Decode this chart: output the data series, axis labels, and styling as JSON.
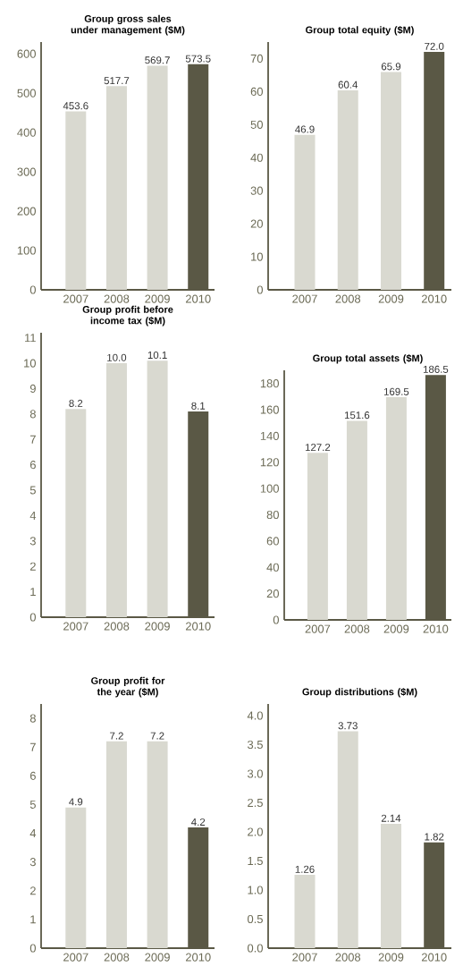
{
  "chart_data": [
    {
      "type": "bar",
      "title": "Group gross sales under management ($M)",
      "categories": [
        "2007",
        "2008",
        "2009",
        "2010"
      ],
      "values": [
        453.6,
        517.7,
        569.7,
        573.5
      ],
      "value_labels": [
        "453.6",
        "517.7",
        "569.7",
        "573.5"
      ],
      "colors": [
        "#d9d9d0",
        "#d9d9d0",
        "#d9d9d0",
        "#5a5845"
      ],
      "ylim": [
        0,
        630
      ],
      "yticks": [
        0,
        100,
        200,
        300,
        400,
        500,
        600
      ]
    },
    {
      "type": "bar",
      "title": "Group total equity ($M)",
      "categories": [
        "2007",
        "2008",
        "2009",
        "2010"
      ],
      "values": [
        46.9,
        60.4,
        65.9,
        72.0
      ],
      "value_labels": [
        "46.9",
        "60.4",
        "65.9",
        "72.0"
      ],
      "colors": [
        "#d9d9d0",
        "#d9d9d0",
        "#d9d9d0",
        "#5a5845"
      ],
      "ylim": [
        0,
        75
      ],
      "yticks": [
        0,
        10,
        20,
        30,
        40,
        50,
        60,
        70
      ]
    },
    {
      "type": "bar",
      "title": "Group profit before income tax ($M)",
      "categories": [
        "2007",
        "2008",
        "2009",
        "2010"
      ],
      "values": [
        8.2,
        10.0,
        10.1,
        8.1
      ],
      "value_labels": [
        "8.2",
        "10.0",
        "10.1",
        "8.1"
      ],
      "colors": [
        "#d9d9d0",
        "#d9d9d0",
        "#d9d9d0",
        "#5a5845"
      ],
      "ylim": [
        0,
        11.2
      ],
      "yticks": [
        0,
        1,
        2,
        3,
        4,
        5,
        6,
        7,
        8,
        9,
        10,
        11
      ]
    },
    {
      "type": "bar",
      "title": "Group total assets ($M)",
      "categories": [
        "2007",
        "2008",
        "2009",
        "2010"
      ],
      "values": [
        127.2,
        151.6,
        169.5,
        186.5
      ],
      "value_labels": [
        "127.2",
        "151.6",
        "169.5",
        "186.5"
      ],
      "colors": [
        "#d9d9d0",
        "#d9d9d0",
        "#d9d9d0",
        "#5a5845"
      ],
      "ylim": [
        0,
        190
      ],
      "yticks": [
        0,
        20,
        40,
        60,
        80,
        100,
        120,
        140,
        160,
        180
      ]
    },
    {
      "type": "bar",
      "title": "Group profit for the year ($M)",
      "categories": [
        "2007",
        "2008",
        "2009",
        "2010"
      ],
      "values": [
        4.9,
        7.2,
        7.2,
        4.2
      ],
      "value_labels": [
        "4.9",
        "7.2",
        "7.2",
        "4.2"
      ],
      "colors": [
        "#d9d9d0",
        "#d9d9d0",
        "#d9d9d0",
        "#5a5845"
      ],
      "ylim": [
        0,
        8.5
      ],
      "yticks": [
        0,
        1,
        2,
        3,
        4,
        5,
        6,
        7,
        8
      ]
    },
    {
      "type": "bar",
      "title": "Group distributions ($M)",
      "categories": [
        "2007",
        "2008",
        "2009",
        "2010"
      ],
      "values": [
        1.26,
        3.73,
        2.14,
        1.82
      ],
      "value_labels": [
        "1.26",
        "3.73",
        "2.14",
        "1.82"
      ],
      "colors": [
        "#d9d9d0",
        "#d9d9d0",
        "#d9d9d0",
        "#5a5845"
      ],
      "ylim": [
        0,
        4.2
      ],
      "yticks": [
        {
          "value": 0,
          "label": "0.0"
        },
        {
          "value": 0.5,
          "label": "0.5"
        },
        {
          "value": 1,
          "label": "1.0"
        },
        {
          "value": 1.5,
          "label": "1.5"
        },
        {
          "value": 2,
          "label": "2.0"
        },
        {
          "value": 2.5,
          "label": "2.5"
        },
        {
          "value": 3,
          "label": "3.0"
        },
        {
          "value": 3.5,
          "label": "3.5"
        },
        {
          "value": 4,
          "label": "4.0"
        }
      ]
    }
  ]
}
